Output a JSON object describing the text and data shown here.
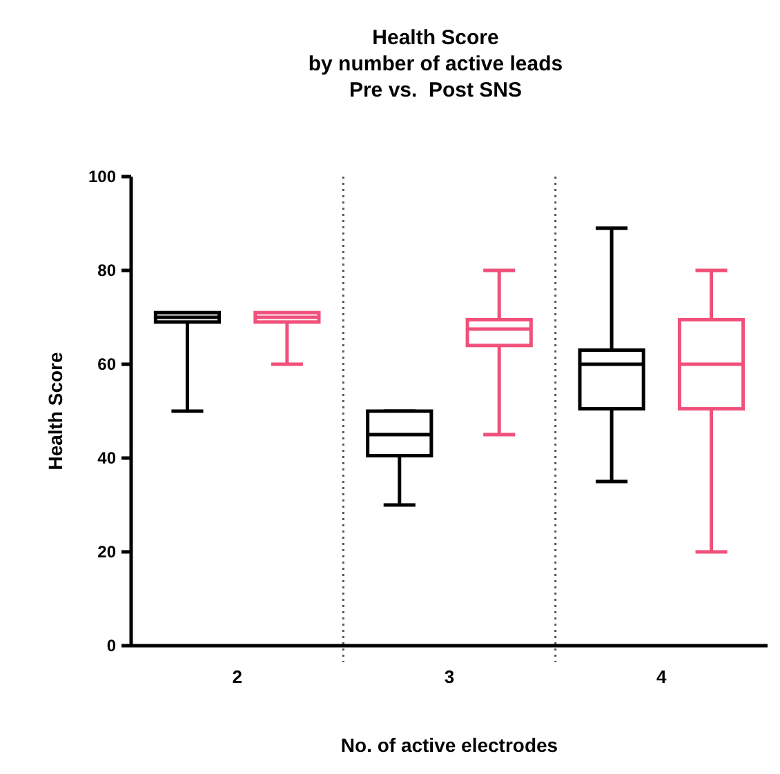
{
  "chart_data": {
    "type": "box",
    "title": "Health Score\nby number of active leads\nPre vs.  Post SNS",
    "xlabel": "No. of active electrodes",
    "ylabel": "Health Score",
    "categories": [
      "2",
      "3",
      "4"
    ],
    "series": [
      {
        "color": "#000000",
        "boxes": [
          {
            "low": 50,
            "q1": 69,
            "median": 70,
            "q3": 71,
            "high": 70
          },
          {
            "low": 30,
            "q1": 40.5,
            "median": 45,
            "q3": 50,
            "high": 50
          },
          {
            "low": 35,
            "q1": 50.5,
            "median": 60,
            "q3": 63,
            "high": 89
          }
        ]
      },
      {
        "color": "#f0507a",
        "boxes": [
          {
            "low": 60,
            "q1": 69,
            "median": 70,
            "q3": 71,
            "high": 70
          },
          {
            "low": 45,
            "q1": 64,
            "median": 67.5,
            "q3": 69.5,
            "high": 80
          },
          {
            "low": 20,
            "q1": 50.5,
            "median": 60,
            "q3": 69.5,
            "high": 80
          }
        ]
      }
    ],
    "ylim": [
      0,
      100
    ],
    "yticks": [
      0,
      20,
      40,
      60,
      80,
      100
    ],
    "grid": false
  }
}
